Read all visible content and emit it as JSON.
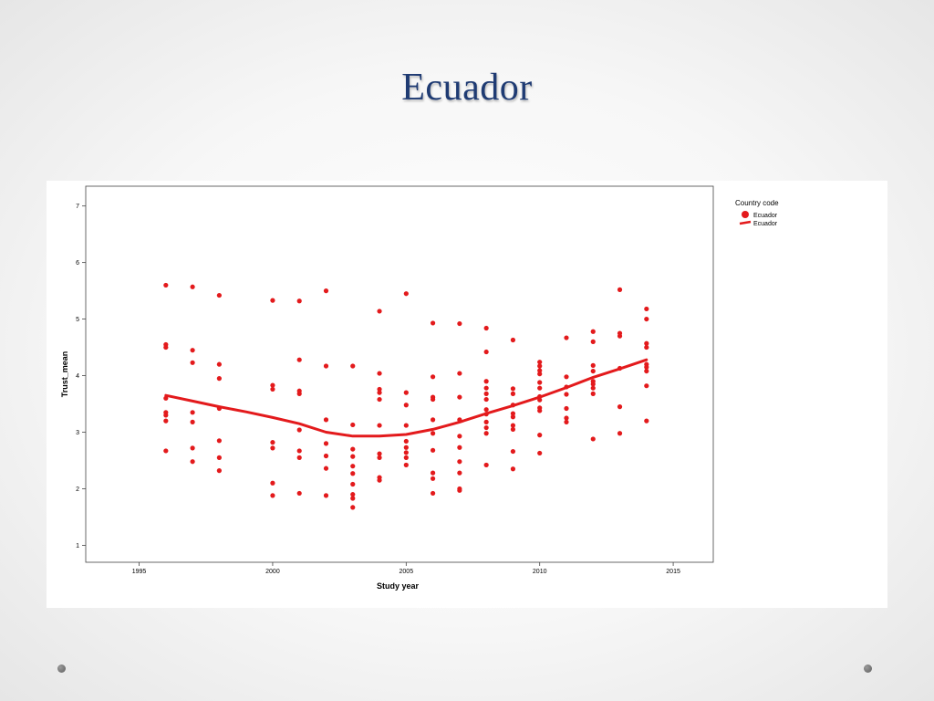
{
  "slide": {
    "title": "Ecuador"
  },
  "colors": {
    "series": "#e31a1c",
    "title": "#1f3b73"
  },
  "icons": [
    "nav-dot-left-icon",
    "nav-dot-right-icon"
  ],
  "chart_data": {
    "type": "scatter",
    "title": "",
    "xlabel": "Study year",
    "ylabel": "Trust_mean",
    "xlim": [
      1993,
      2016.5
    ],
    "ylim": [
      0.7,
      7.35
    ],
    "xticks": [
      1995,
      2000,
      2005,
      2010,
      2015
    ],
    "yticks": [
      1,
      2,
      3,
      4,
      5,
      6,
      7
    ],
    "grid": false,
    "legend": {
      "title": "Country code",
      "placement": "right",
      "entries": [
        {
          "label": "Ecuador",
          "marker": "point"
        },
        {
          "label": "Ecuador",
          "marker": "line"
        }
      ]
    },
    "series": [
      {
        "name": "Ecuador",
        "kind": "points",
        "points": [
          [
            1996,
            5.6
          ],
          [
            1996,
            4.55
          ],
          [
            1996,
            4.5
          ],
          [
            1996,
            3.6
          ],
          [
            1996,
            3.35
          ],
          [
            1996,
            3.3
          ],
          [
            1996,
            3.2
          ],
          [
            1996,
            2.67
          ],
          [
            1997,
            5.57
          ],
          [
            1997,
            4.45
          ],
          [
            1997,
            4.23
          ],
          [
            1997,
            3.35
          ],
          [
            1997,
            3.18
          ],
          [
            1997,
            2.72
          ],
          [
            1997,
            2.48
          ],
          [
            1998,
            5.42
          ],
          [
            1998,
            4.2
          ],
          [
            1998,
            3.95
          ],
          [
            1998,
            3.42
          ],
          [
            1998,
            2.85
          ],
          [
            1998,
            2.55
          ],
          [
            1998,
            2.32
          ],
          [
            2000,
            5.33
          ],
          [
            2000,
            3.83
          ],
          [
            2000,
            3.76
          ],
          [
            2000,
            2.82
          ],
          [
            2000,
            2.72
          ],
          [
            2000,
            2.1
          ],
          [
            2000,
            1.88
          ],
          [
            2001,
            5.32
          ],
          [
            2001,
            4.28
          ],
          [
            2001,
            3.73
          ],
          [
            2001,
            3.68
          ],
          [
            2001,
            3.04
          ],
          [
            2001,
            2.67
          ],
          [
            2001,
            2.55
          ],
          [
            2001,
            1.92
          ],
          [
            2002,
            5.5
          ],
          [
            2002,
            4.17
          ],
          [
            2002,
            3.22
          ],
          [
            2002,
            2.8
          ],
          [
            2002,
            2.58
          ],
          [
            2002,
            2.36
          ],
          [
            2002,
            1.88
          ],
          [
            2003,
            4.17
          ],
          [
            2003,
            3.13
          ],
          [
            2003,
            2.7
          ],
          [
            2003,
            2.57
          ],
          [
            2003,
            2.4
          ],
          [
            2003,
            2.27
          ],
          [
            2003,
            2.08
          ],
          [
            2003,
            1.9
          ],
          [
            2003,
            1.83
          ],
          [
            2003,
            1.67
          ],
          [
            2004,
            5.14
          ],
          [
            2004,
            4.04
          ],
          [
            2004,
            3.76
          ],
          [
            2004,
            3.7
          ],
          [
            2004,
            3.58
          ],
          [
            2004,
            3.12
          ],
          [
            2004,
            2.62
          ],
          [
            2004,
            2.55
          ],
          [
            2004,
            2.2
          ],
          [
            2004,
            2.15
          ],
          [
            2005,
            5.45
          ],
          [
            2005,
            3.7
          ],
          [
            2005,
            3.48
          ],
          [
            2005,
            3.12
          ],
          [
            2005,
            2.84
          ],
          [
            2005,
            2.73
          ],
          [
            2005,
            2.64
          ],
          [
            2005,
            2.55
          ],
          [
            2005,
            2.42
          ],
          [
            2006,
            4.93
          ],
          [
            2006,
            3.98
          ],
          [
            2006,
            3.62
          ],
          [
            2006,
            3.58
          ],
          [
            2006,
            3.22
          ],
          [
            2006,
            2.98
          ],
          [
            2006,
            2.68
          ],
          [
            2006,
            2.28
          ],
          [
            2006,
            2.18
          ],
          [
            2006,
            1.92
          ],
          [
            2007,
            4.92
          ],
          [
            2007,
            4.04
          ],
          [
            2007,
            3.62
          ],
          [
            2007,
            3.22
          ],
          [
            2007,
            2.93
          ],
          [
            2007,
            2.73
          ],
          [
            2007,
            2.48
          ],
          [
            2007,
            2.28
          ],
          [
            2007,
            2.0
          ],
          [
            2007,
            1.97
          ],
          [
            2008,
            4.84
          ],
          [
            2008,
            4.42
          ],
          [
            2008,
            3.9
          ],
          [
            2008,
            3.78
          ],
          [
            2008,
            3.68
          ],
          [
            2008,
            3.58
          ],
          [
            2008,
            3.4
          ],
          [
            2008,
            3.32
          ],
          [
            2008,
            3.18
          ],
          [
            2008,
            3.08
          ],
          [
            2008,
            2.98
          ],
          [
            2008,
            2.42
          ],
          [
            2009,
            4.63
          ],
          [
            2009,
            3.77
          ],
          [
            2009,
            3.68
          ],
          [
            2009,
            3.48
          ],
          [
            2009,
            3.33
          ],
          [
            2009,
            3.27
          ],
          [
            2009,
            3.12
          ],
          [
            2009,
            3.05
          ],
          [
            2009,
            2.66
          ],
          [
            2009,
            2.35
          ],
          [
            2010,
            4.24
          ],
          [
            2010,
            4.17
          ],
          [
            2010,
            4.09
          ],
          [
            2010,
            4.03
          ],
          [
            2010,
            3.88
          ],
          [
            2010,
            3.78
          ],
          [
            2010,
            3.63
          ],
          [
            2010,
            3.57
          ],
          [
            2010,
            3.43
          ],
          [
            2010,
            3.38
          ],
          [
            2010,
            2.95
          ],
          [
            2010,
            2.63
          ],
          [
            2011,
            4.67
          ],
          [
            2011,
            3.98
          ],
          [
            2011,
            3.8
          ],
          [
            2011,
            3.67
          ],
          [
            2011,
            3.42
          ],
          [
            2011,
            3.25
          ],
          [
            2011,
            3.18
          ],
          [
            2012,
            4.78
          ],
          [
            2012,
            4.6
          ],
          [
            2012,
            4.18
          ],
          [
            2012,
            4.08
          ],
          [
            2012,
            3.9
          ],
          [
            2012,
            3.85
          ],
          [
            2012,
            3.78
          ],
          [
            2012,
            3.68
          ],
          [
            2012,
            2.88
          ],
          [
            2013,
            5.52
          ],
          [
            2013,
            4.75
          ],
          [
            2013,
            4.7
          ],
          [
            2013,
            4.13
          ],
          [
            2013,
            3.45
          ],
          [
            2013,
            2.98
          ],
          [
            2014,
            5.18
          ],
          [
            2014,
            5.0
          ],
          [
            2014,
            4.57
          ],
          [
            2014,
            4.5
          ],
          [
            2014,
            4.2
          ],
          [
            2014,
            4.15
          ],
          [
            2014,
            4.08
          ],
          [
            2014,
            3.82
          ],
          [
            2014,
            3.2
          ]
        ]
      },
      {
        "name": "Ecuador",
        "kind": "fit-line",
        "points": [
          [
            1996,
            3.65
          ],
          [
            1997,
            3.55
          ],
          [
            1998,
            3.45
          ],
          [
            1999,
            3.36
          ],
          [
            2000,
            3.26
          ],
          [
            2001,
            3.15
          ],
          [
            2002,
            3.0
          ],
          [
            2003,
            2.93
          ],
          [
            2004,
            2.93
          ],
          [
            2005,
            2.96
          ],
          [
            2006,
            3.05
          ],
          [
            2007,
            3.18
          ],
          [
            2008,
            3.33
          ],
          [
            2009,
            3.47
          ],
          [
            2010,
            3.62
          ],
          [
            2011,
            3.79
          ],
          [
            2012,
            3.97
          ],
          [
            2013,
            4.12
          ],
          [
            2014,
            4.28
          ]
        ]
      }
    ]
  }
}
